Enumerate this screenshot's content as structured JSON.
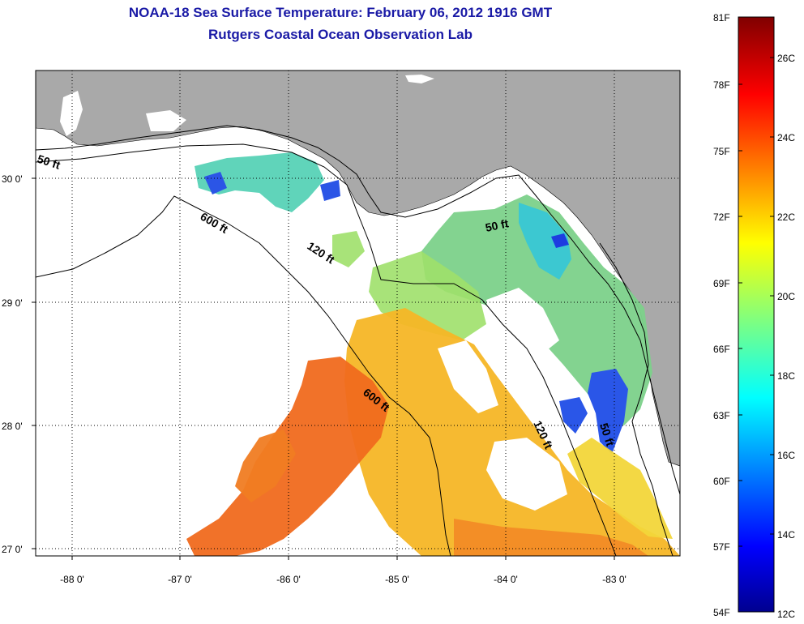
{
  "title": {
    "line1": "NOAA-18 Sea Surface Temperature:  February 06, 2012 1916 GMT",
    "line2": "Rutgers Coastal Ocean Observation Lab"
  },
  "map": {
    "x_ticks": [
      "-88 0'",
      "-87 0'",
      "-86 0'",
      "-85 0'",
      "-84 0'",
      "-83 0'"
    ],
    "y_ticks": [
      "30 0'",
      "29 0'",
      "28 0'",
      "27 0'"
    ],
    "contours": [
      "50 ft",
      "600 ft",
      "120 ft",
      "50 ft",
      "600 ft",
      "120 ft",
      "50 ft"
    ],
    "colors": {
      "land": "#a9a9a9",
      "cloud": "#ffffff",
      "contour": "#000000"
    }
  },
  "colorbar": {
    "fahrenheit": [
      "81F",
      "78F",
      "75F",
      "72F",
      "69F",
      "66F",
      "63F",
      "60F",
      "57F",
      "54F"
    ],
    "celsius": [
      "26C",
      "24C",
      "22C",
      "20C",
      "18C",
      "16C",
      "14C",
      "12C"
    ]
  }
}
